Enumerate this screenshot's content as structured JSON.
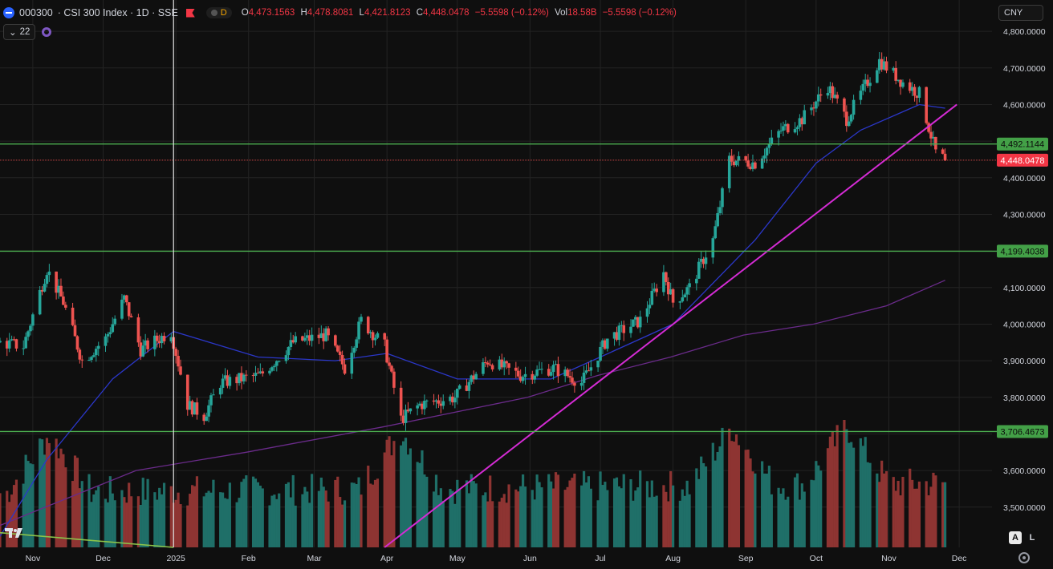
{
  "header": {
    "symbol": "000300",
    "title": "· CSI 300 Index · 1D · SSE",
    "d_label": "D",
    "ohlc": [
      {
        "k": "O",
        "v": "4,473.1563"
      },
      {
        "k": "H",
        "v": "4,478.8081"
      },
      {
        "k": "L",
        "v": "4,421.8123"
      },
      {
        "k": "C",
        "v": "4,448.0478"
      },
      {
        "k": "",
        "v": "−5.5598 (−0.12%)"
      },
      {
        "k": "Vol",
        "v": "18.58B"
      },
      {
        "k": "",
        "v": "−5.5598 (−0.12%)"
      }
    ],
    "collapse_count": "22",
    "currency": "CNY"
  },
  "buttons": {
    "auto": "A",
    "log": "L"
  },
  "colors": {
    "background": "#0f0f0f",
    "grid": "#232323",
    "up": "#26a69a",
    "down": "#ef5350",
    "ma50": "#2b37c9",
    "ma200": "#6a2b8a",
    "trendline": "#d42bd4",
    "hline": "#4caf50",
    "price_line": "#ef5350",
    "axis_text": "#d1d4dc"
  },
  "chart_data": {
    "type": "candlestick",
    "title": "CSI 300 Index · 1D · SSE",
    "y_axis": {
      "ticks": [
        "3,500.0000",
        "3,600.0000",
        "3,700.0000",
        "3,800.0000",
        "3,900.0000",
        "4,000.0000",
        "4,100.0000",
        "4,200.0000",
        "4,300.0000",
        "4,400.0000",
        "4,500.0000",
        "4,600.0000",
        "4,700.0000",
        "4,800.0000"
      ],
      "tick_values": [
        3500,
        3600,
        3700,
        3800,
        3900,
        4000,
        4100,
        4200,
        4300,
        4400,
        4500,
        4600,
        4700,
        4800
      ],
      "ylim": [
        3390,
        4820
      ],
      "scale": "linear"
    },
    "x_axis": {
      "ticks": [
        "Nov",
        "Dec",
        "2025",
        "Feb",
        "Mar",
        "Apr",
        "May",
        "Jun",
        "Jul",
        "Aug",
        "Sep",
        "Oct",
        "Nov",
        "Dec"
      ],
      "tick_dates": [
        "2024-11-01",
        "2024-12-01",
        "2025-01-01",
        "2025-02-01",
        "2025-03-01",
        "2025-04-01",
        "2025-05-01",
        "2025-06-01",
        "2025-07-01",
        "2025-08-01",
        "2025-09-01",
        "2025-10-01",
        "2025-11-01",
        "2025-12-01"
      ],
      "range": [
        "2024-10-18",
        "2025-12-15"
      ]
    },
    "horizontal_levels": [
      {
        "value": 4492.1144,
        "label": "4,492.1144",
        "color": "#4caf50"
      },
      {
        "value": 4199.4038,
        "label": "4,199.4038",
        "color": "#4caf50"
      },
      {
        "value": 3706.4673,
        "label": "3,706.4673",
        "color": "#4caf50"
      }
    ],
    "last_price": {
      "value": 4448.0478,
      "label": "4,448.0478",
      "color": "#f23645"
    },
    "crosshair_date": "2024-12-31",
    "price_path": [
      [
        "2024-10-18",
        3950
      ],
      [
        "2024-10-28",
        3940
      ],
      [
        "2024-11-07",
        4150
      ],
      [
        "2024-11-14",
        4060
      ],
      [
        "2024-11-22",
        3900
      ],
      [
        "2024-12-02",
        3960
      ],
      [
        "2024-12-10",
        4070
      ],
      [
        "2024-12-17",
        3930
      ],
      [
        "2024-12-30",
        3980
      ],
      [
        "2025-01-06",
        3780
      ],
      [
        "2025-01-13",
        3750
      ],
      [
        "2025-01-20",
        3840
      ],
      [
        "2025-02-06",
        3860
      ],
      [
        "2025-02-20",
        3950
      ],
      [
        "2025-03-06",
        3970
      ],
      [
        "2025-03-14",
        3880
      ],
      [
        "2025-03-21",
        4010
      ],
      [
        "2025-03-31",
        3940
      ],
      [
        "2025-04-07",
        3740
      ],
      [
        "2025-04-15",
        3780
      ],
      [
        "2025-04-30",
        3800
      ],
      [
        "2025-05-14",
        3900
      ],
      [
        "2025-05-28",
        3860
      ],
      [
        "2025-06-11",
        3880
      ],
      [
        "2025-06-23",
        3840
      ],
      [
        "2025-07-04",
        3960
      ],
      [
        "2025-07-18",
        4010
      ],
      [
        "2025-07-28",
        4140
      ],
      [
        "2025-08-01",
        4060
      ],
      [
        "2025-08-08",
        4100
      ],
      [
        "2025-08-18",
        4230
      ],
      [
        "2025-08-25",
        4450
      ],
      [
        "2025-09-05",
        4440
      ],
      [
        "2025-09-16",
        4530
      ],
      [
        "2025-09-25",
        4560
      ],
      [
        "2025-10-06",
        4650
      ],
      [
        "2025-10-14",
        4560
      ],
      [
        "2025-10-28",
        4720
      ],
      [
        "2025-11-07",
        4660
      ],
      [
        "2025-11-14",
        4630
      ],
      [
        "2025-11-21",
        4470
      ],
      [
        "2025-11-25",
        4448
      ]
    ],
    "ma50_path": [
      [
        "2024-10-18",
        3420
      ],
      [
        "2024-11-07",
        3630
      ],
      [
        "2024-12-05",
        3850
      ],
      [
        "2024-12-31",
        3980
      ],
      [
        "2025-02-05",
        3910
      ],
      [
        "2025-03-10",
        3900
      ],
      [
        "2025-04-01",
        3920
      ],
      [
        "2025-05-01",
        3850
      ],
      [
        "2025-06-10",
        3850
      ],
      [
        "2025-07-01",
        3910
      ],
      [
        "2025-08-01",
        4000
      ],
      [
        "2025-09-05",
        4230
      ],
      [
        "2025-10-01",
        4440
      ],
      [
        "2025-10-20",
        4530
      ],
      [
        "2025-11-14",
        4600
      ],
      [
        "2025-11-25",
        4590
      ]
    ],
    "ma200_path": [
      [
        "2024-10-18",
        3450
      ],
      [
        "2024-12-15",
        3600
      ],
      [
        "2025-01-31",
        3650
      ],
      [
        "2025-03-31",
        3720
      ],
      [
        "2025-05-31",
        3800
      ],
      [
        "2025-06-30",
        3860
      ],
      [
        "2025-07-31",
        3910
      ],
      [
        "2025-08-31",
        3970
      ],
      [
        "2025-09-30",
        4000
      ],
      [
        "2025-10-31",
        4050
      ],
      [
        "2025-11-25",
        4120
      ]
    ],
    "trendlines": [
      {
        "from": [
          "2025-03-31",
          3390
        ],
        "to": [
          "2025-11-30",
          4600
        ],
        "color": "#d42bd4"
      },
      {
        "from": [
          "2024-10-18",
          3430
        ],
        "to": [
          "2024-12-31",
          3390
        ],
        "color": "#8bc34a"
      }
    ],
    "volume": {
      "description": "daily volume histogram (unitless relative)",
      "peak_dates": [
        "2024-11-08",
        "2025-04-07",
        "2025-08-26",
        "2025-10-14"
      ]
    }
  }
}
